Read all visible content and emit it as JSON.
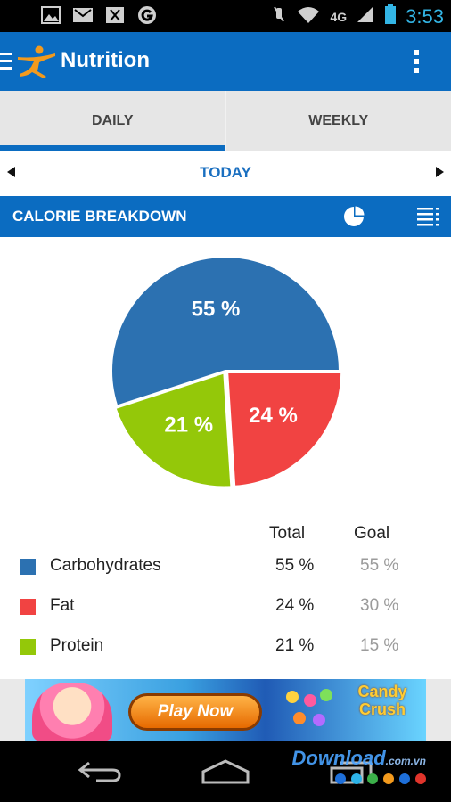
{
  "status_bar": {
    "time": "3:53",
    "network": "4G",
    "icons": [
      "image-icon",
      "gmail-icon",
      "download-icon",
      "google-icon",
      "mute-icon",
      "wifi-icon",
      "signal-icon",
      "battery-icon"
    ]
  },
  "app_bar": {
    "title": "Nutrition"
  },
  "tabs": [
    {
      "label": "DAILY",
      "active": true
    },
    {
      "label": "WEEKLY",
      "active": false
    }
  ],
  "date_nav": {
    "label": "TODAY"
  },
  "section": {
    "title": "CALORIE BREAKDOWN"
  },
  "chart_data": {
    "type": "pie",
    "slices": [
      {
        "label": "Carbohydrates",
        "value": 55,
        "display": "55 %",
        "color": "#2c71b1"
      },
      {
        "label": "Fat",
        "value": 24,
        "display": "24 %",
        "color": "#f14342"
      },
      {
        "label": "Protein",
        "value": 21,
        "display": "21 %",
        "color": "#94c809"
      }
    ]
  },
  "legend": {
    "total_header": "Total",
    "goal_header": "Goal",
    "rows": [
      {
        "name": "Carbohydrates",
        "total": "55 %",
        "goal": "55 %",
        "color": "#2c71b1"
      },
      {
        "name": "Fat",
        "total": "24 %",
        "goal": "30 %",
        "color": "#f14342"
      },
      {
        "name": "Protein",
        "total": "21 %",
        "goal": "15 %",
        "color": "#94c809"
      }
    ]
  },
  "ad": {
    "button": "Play Now",
    "brand_line1": "Candy",
    "brand_line2": "Crush"
  },
  "watermark": {
    "text": "Download",
    "suffix": ".com.vn"
  }
}
